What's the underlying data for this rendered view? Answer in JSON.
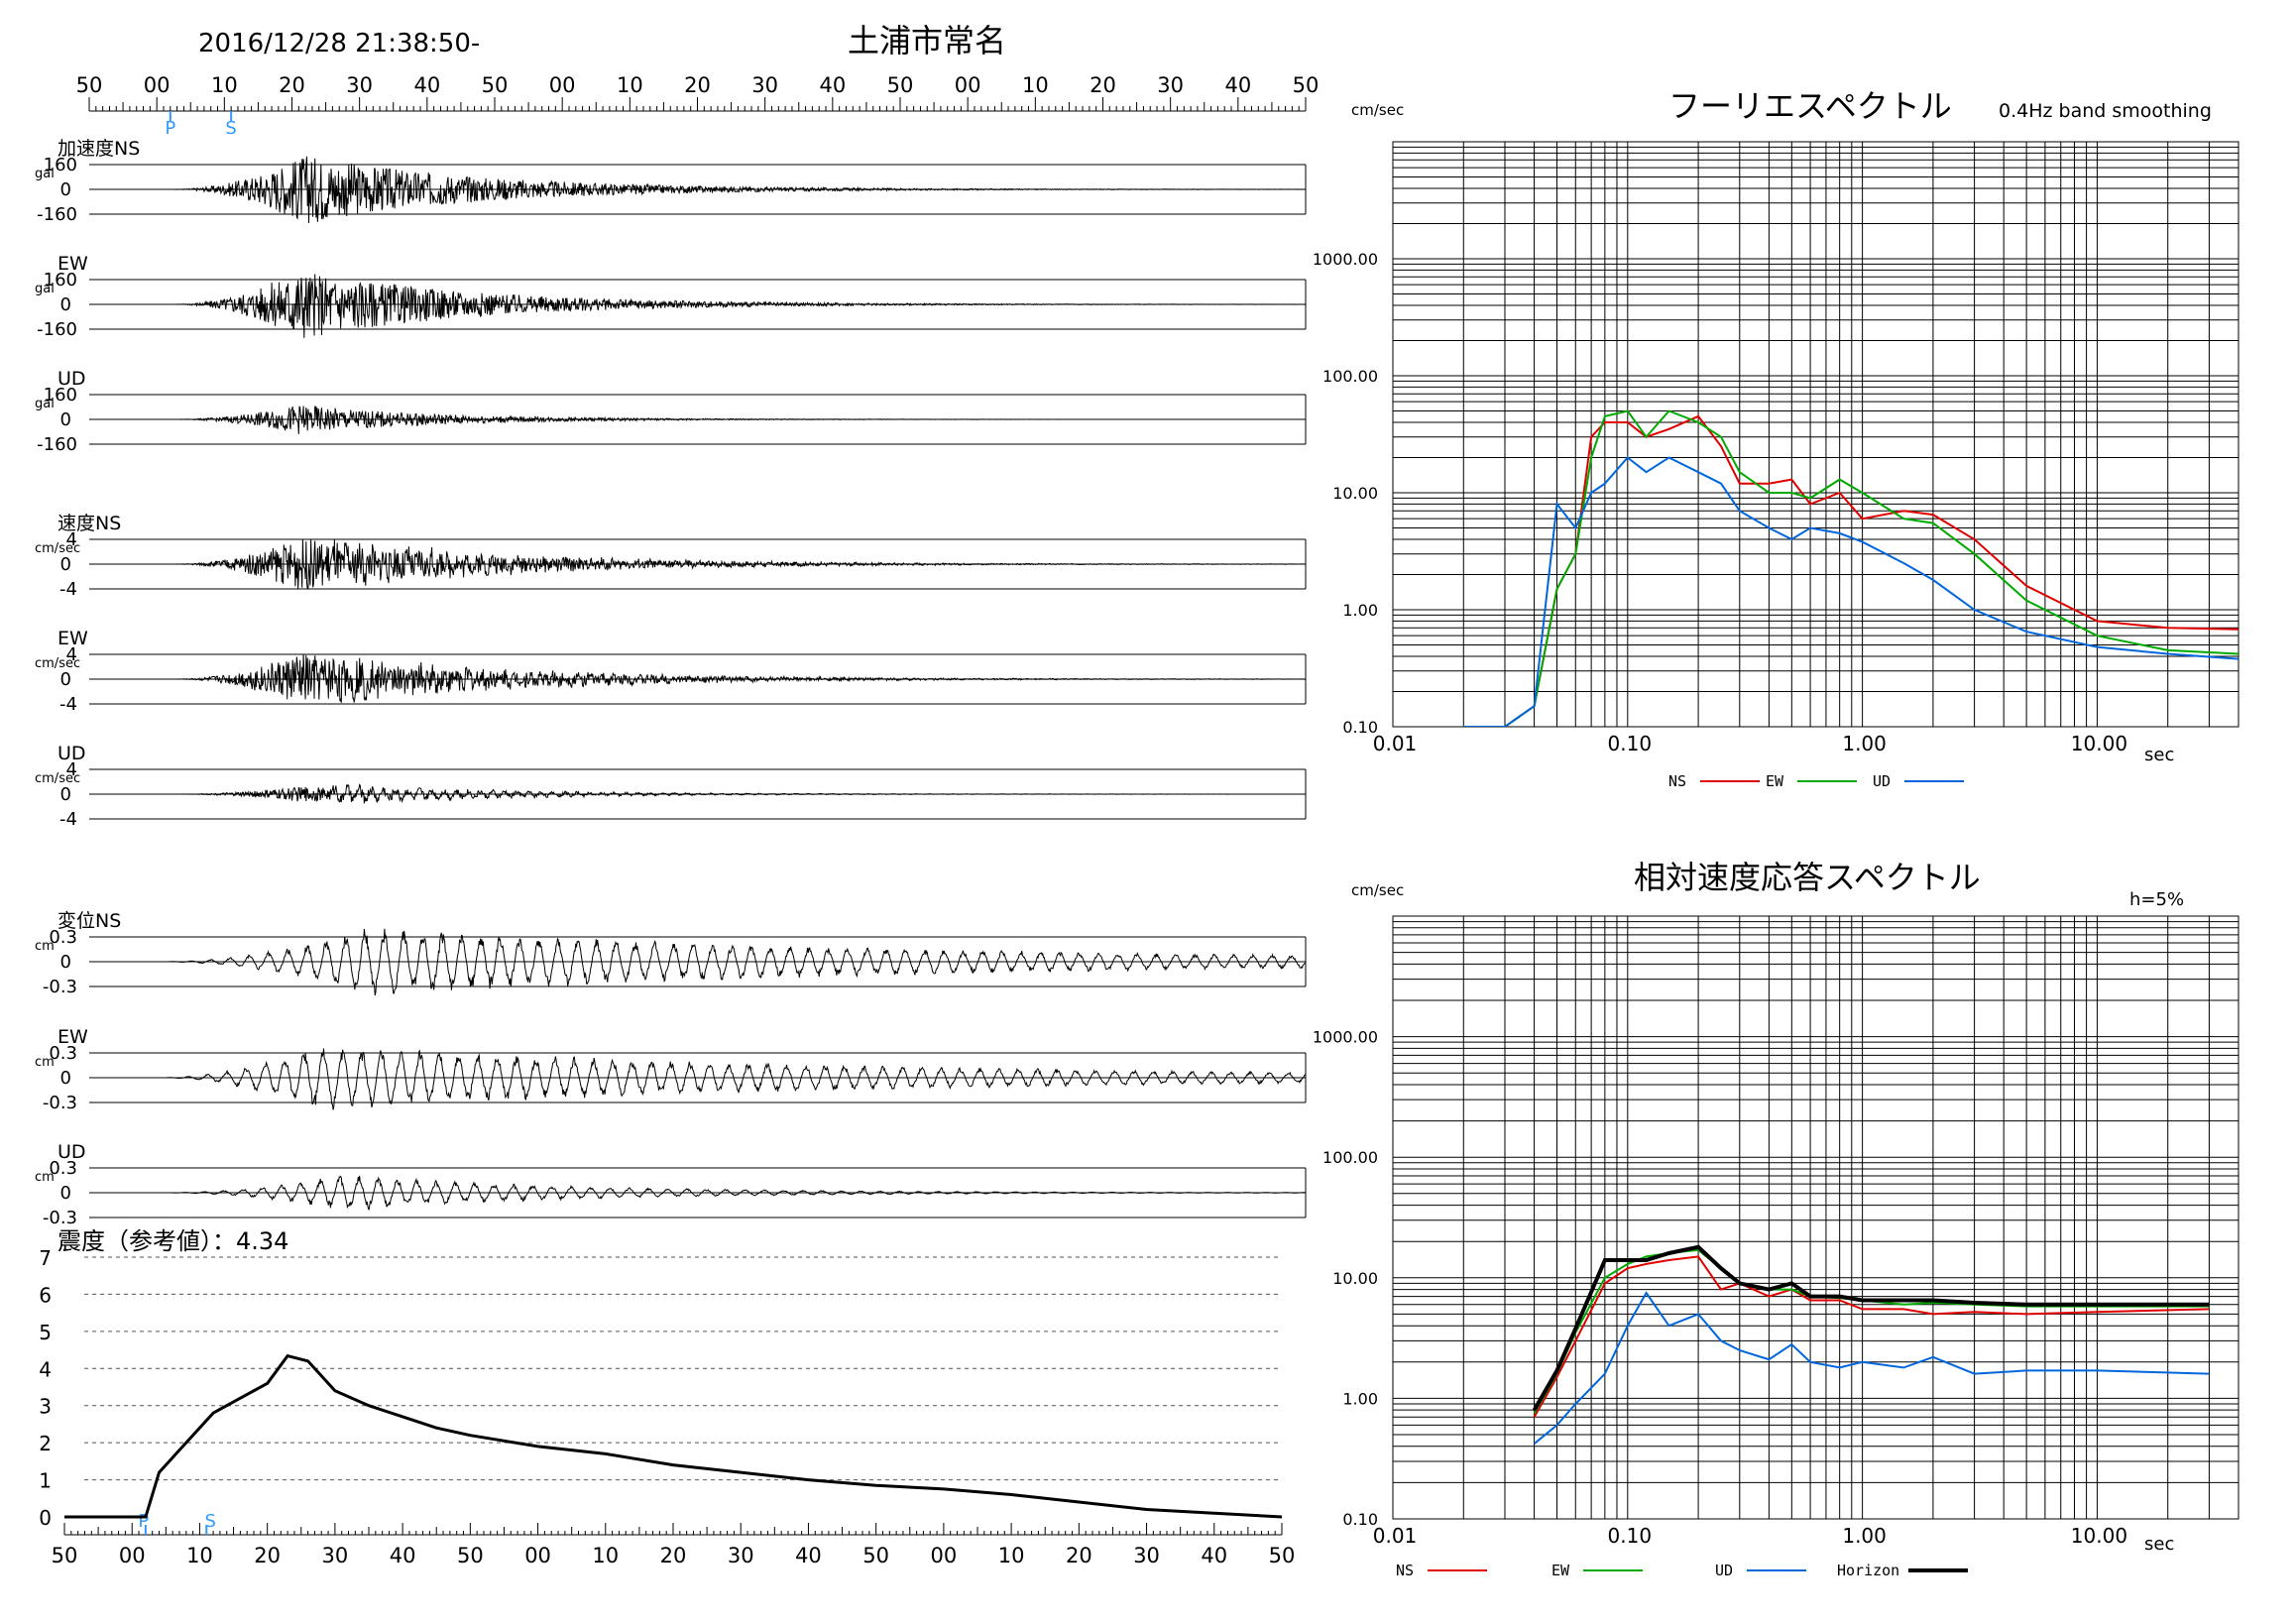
{
  "header": {
    "datetime": "2016/12/28 21:38:50-",
    "station": "土浦市常名"
  },
  "time_axis": {
    "top_labels": [
      "50",
      "00",
      "10",
      "20",
      "30",
      "40",
      "50",
      "00",
      "10",
      "20",
      "30",
      "40",
      "50",
      "00",
      "10",
      "20",
      "30",
      "40",
      "50"
    ],
    "bottom_labels": [
      "50",
      "00",
      "10",
      "20",
      "30",
      "40",
      "50",
      "00",
      "10",
      "20",
      "30",
      "40",
      "50",
      "00",
      "10",
      "20",
      "30",
      "40",
      "50"
    ],
    "p_label": "P",
    "s_label": "S",
    "p_second": 12,
    "s_second": 21
  },
  "waveform_panels": [
    {
      "title": "加速度NS",
      "unit": "gal",
      "ticks": [
        "160",
        "0",
        "-160"
      ],
      "peak_second": 32,
      "amplitude": 0.95,
      "decay": 0.04
    },
    {
      "title": "EW",
      "unit": "gal",
      "ticks": [
        "160",
        "0",
        "-160"
      ],
      "peak_second": 31,
      "amplitude": 0.95,
      "decay": 0.04
    },
    {
      "title": "UD",
      "unit": "gal",
      "ticks": [
        "160",
        "0",
        "-160"
      ],
      "peak_second": 31,
      "amplitude": 0.4,
      "decay": 0.05
    },
    {
      "title": "速度NS",
      "unit": "cm/sec",
      "ticks": [
        "4",
        "0",
        "-4"
      ],
      "peak_second": 31,
      "amplitude": 0.7,
      "decay": 0.035
    },
    {
      "title": "EW",
      "unit": "cm/sec",
      "ticks": [
        "4",
        "0",
        "-4"
      ],
      "peak_second": 31,
      "amplitude": 0.7,
      "decay": 0.035
    },
    {
      "title": "UD",
      "unit": "cm/sec",
      "ticks": [
        "4",
        "0",
        "-4"
      ],
      "peak_second": 31,
      "amplitude": 0.2,
      "decay": 0.04
    },
    {
      "title": "変位NS",
      "unit": "cm",
      "ticks": [
        "0.3",
        "0",
        "-0.3"
      ],
      "peak_second": 41,
      "amplitude": 0.95,
      "decay": 0.012
    },
    {
      "title": "EW",
      "unit": "cm",
      "ticks": [
        "0.3",
        "0",
        "-0.3"
      ],
      "peak_second": 33,
      "amplitude": 0.9,
      "decay": 0.012
    },
    {
      "title": "UD",
      "unit": "cm",
      "ticks": [
        "0.3",
        "0",
        "-0.3"
      ],
      "peak_second": 38,
      "amplitude": 0.5,
      "decay": 0.03
    }
  ],
  "intensity": {
    "label": "震度（参考値）：4.34",
    "y_ticks": [
      "0",
      "1",
      "2",
      "3",
      "4",
      "5",
      "6",
      "7"
    ]
  },
  "colors": {
    "ns": "#e00000",
    "ew": "#00aa00",
    "ud": "#0066dd",
    "horizon": "#000000",
    "ps_marker": "#3399ff"
  },
  "fourier": {
    "title": "フーリエスペクトル",
    "subtitle": "0.4Hz band smoothing",
    "y_unit": "cm/sec",
    "x_unit": "sec",
    "y_ticks": [
      "1000.00",
      "100.00",
      "10.00",
      "1.00",
      "0.10"
    ],
    "x_ticks": [
      "0.01",
      "0.10",
      "1.00",
      "10.00"
    ],
    "legend": [
      {
        "label": "NS",
        "color": "#e00000"
      },
      {
        "label": "EW",
        "color": "#00aa00"
      },
      {
        "label": "UD",
        "color": "#0066dd"
      }
    ]
  },
  "response": {
    "title": "相対速度応答スペクトル",
    "damping": "h=5%",
    "y_unit": "cm/sec",
    "x_unit": "sec",
    "y_ticks": [
      "1000.00",
      "100.00",
      "10.00",
      "1.00",
      "0.10"
    ],
    "x_ticks": [
      "0.01",
      "0.10",
      "1.00",
      "10.00"
    ],
    "legend": [
      {
        "label": "NS",
        "color": "#e00000"
      },
      {
        "label": "EW",
        "color": "#00aa00"
      },
      {
        "label": "UD",
        "color": "#0066dd"
      },
      {
        "label": "Horizon",
        "color": "#000000"
      }
    ]
  },
  "chart_data": [
    {
      "type": "line",
      "x": [
        0,
        12,
        14,
        18,
        22,
        26,
        30,
        33,
        36,
        40,
        45,
        50,
        55,
        60,
        70,
        80,
        90,
        100,
        110,
        120,
        130,
        140,
        150,
        160,
        170,
        180
      ],
      "values": [
        0,
        0,
        1.2,
        2.0,
        2.8,
        3.2,
        3.6,
        4.34,
        4.2,
        3.4,
        3.0,
        2.7,
        2.4,
        2.2,
        1.9,
        1.7,
        1.4,
        1.2,
        1.0,
        0.85,
        0.75,
        0.6,
        0.4,
        0.2,
        0.1,
        0
      ],
      "xlabel": "",
      "ylabel": "",
      "ylim": [
        0,
        7
      ]
    },
    {
      "type": "line",
      "xlim": [
        0.01,
        40
      ],
      "ylim": [
        0.1,
        10000
      ],
      "x_scale": "log",
      "y_scale": "log",
      "series": [
        {
          "name": "NS",
          "x": [
            0.02,
            0.03,
            0.04,
            0.05,
            0.06,
            0.07,
            0.08,
            0.1,
            0.12,
            0.15,
            0.2,
            0.25,
            0.3,
            0.4,
            0.5,
            0.6,
            0.8,
            1.0,
            1.5,
            2,
            3,
            5,
            10,
            20,
            40
          ],
          "values": [
            0.1,
            0.1,
            0.15,
            1.5,
            3,
            30,
            40,
            40,
            30,
            35,
            45,
            25,
            12,
            12,
            13,
            8,
            10,
            6,
            7,
            6.5,
            4,
            1.6,
            0.8,
            0.7,
            0.68
          ]
        },
        {
          "name": "EW",
          "x": [
            0.02,
            0.03,
            0.04,
            0.05,
            0.06,
            0.07,
            0.08,
            0.1,
            0.12,
            0.15,
            0.2,
            0.25,
            0.3,
            0.4,
            0.5,
            0.6,
            0.8,
            1.0,
            1.5,
            2,
            3,
            5,
            10,
            20,
            40
          ],
          "values": [
            0.1,
            0.1,
            0.15,
            1.5,
            3,
            20,
            45,
            50,
            30,
            50,
            40,
            30,
            15,
            10,
            10,
            9,
            13,
            10,
            6,
            5.5,
            3,
            1.2,
            0.6,
            0.45,
            0.42
          ]
        },
        {
          "name": "UD",
          "x": [
            0.02,
            0.03,
            0.04,
            0.05,
            0.06,
            0.07,
            0.08,
            0.1,
            0.12,
            0.15,
            0.2,
            0.25,
            0.3,
            0.4,
            0.5,
            0.6,
            0.8,
            1.0,
            1.5,
            2,
            3,
            5,
            10,
            20,
            40
          ],
          "values": [
            0.1,
            0.1,
            0.15,
            8,
            5,
            10,
            12,
            20,
            15,
            20,
            15,
            12,
            7,
            5,
            4,
            5,
            4.5,
            3.8,
            2.5,
            1.8,
            1,
            0.65,
            0.48,
            0.42,
            0.38
          ]
        }
      ]
    },
    {
      "type": "line",
      "xlim": [
        0.01,
        40
      ],
      "ylim": [
        0.1,
        10000
      ],
      "x_scale": "log",
      "y_scale": "log",
      "series": [
        {
          "name": "NS",
          "x": [
            0.04,
            0.05,
            0.06,
            0.08,
            0.1,
            0.12,
            0.15,
            0.2,
            0.25,
            0.3,
            0.4,
            0.5,
            0.6,
            0.8,
            1.0,
            1.5,
            2,
            3,
            5,
            10,
            30
          ],
          "values": [
            0.7,
            1.5,
            3,
            9,
            12,
            13,
            14,
            15,
            8,
            9,
            7,
            8,
            6.5,
            6.5,
            5.5,
            5.5,
            5,
            5.2,
            5,
            5.2,
            5.5
          ]
        },
        {
          "name": "EW",
          "x": [
            0.04,
            0.05,
            0.06,
            0.08,
            0.1,
            0.12,
            0.15,
            0.2,
            0.25,
            0.3,
            0.4,
            0.5,
            0.6,
            0.8,
            1.0,
            1.5,
            2,
            3,
            5,
            10,
            30
          ],
          "values": [
            0.75,
            1.6,
            3.5,
            10,
            13,
            15,
            16,
            17,
            12,
            9,
            8,
            8,
            7,
            6.8,
            6.5,
            6,
            6.2,
            6,
            5.8,
            5.8,
            5.8
          ]
        },
        {
          "name": "UD",
          "x": [
            0.04,
            0.05,
            0.06,
            0.08,
            0.1,
            0.12,
            0.15,
            0.2,
            0.25,
            0.3,
            0.4,
            0.5,
            0.6,
            0.8,
            1.0,
            1.5,
            2,
            3,
            5,
            10,
            30
          ],
          "values": [
            0.42,
            0.6,
            0.9,
            1.6,
            4,
            7.5,
            4,
            5,
            3,
            2.5,
            2.1,
            2.8,
            2,
            1.8,
            2,
            1.8,
            2.2,
            1.6,
            1.7,
            1.7,
            1.6
          ]
        },
        {
          "name": "Horizon",
          "x": [
            0.04,
            0.05,
            0.06,
            0.08,
            0.1,
            0.12,
            0.15,
            0.2,
            0.25,
            0.3,
            0.4,
            0.5,
            0.6,
            0.8,
            1.0,
            1.5,
            2,
            3,
            5,
            10,
            30
          ],
          "values": [
            0.8,
            1.7,
            3.8,
            14,
            14,
            14,
            16,
            18,
            12,
            9,
            8,
            9,
            7,
            7,
            6.5,
            6.5,
            6.5,
            6.2,
            6,
            6,
            6
          ]
        }
      ]
    }
  ]
}
